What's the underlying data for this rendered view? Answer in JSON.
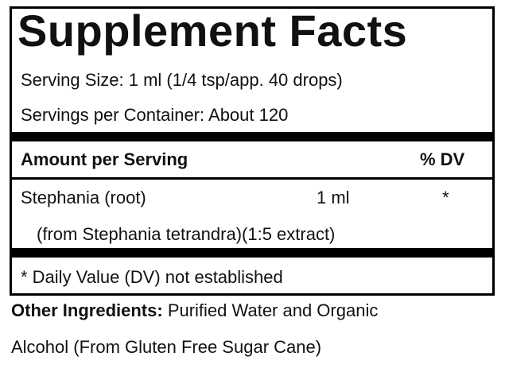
{
  "header": {
    "title": "Supplement Facts"
  },
  "serving_size": "Serving Size: 1 ml (1/4 tsp/app. 40 drops)",
  "servings_per_container": "Servings per Container: About 120",
  "table": {
    "headers": [
      "Amount per Serving",
      "% DV"
    ],
    "rows": [
      [
        "Stephania (root)",
        "1 ml",
        "*"
      ]
    ],
    "row_note": "(from Stephania tetrandra)(1:5 extract)"
  },
  "footnote": "* Daily Value (DV) not established",
  "other_ingredients": {
    "label": "Other Ingredients:",
    "text_line1": "Purified Water and Organic",
    "text_line2": "Alcohol (From Gluten Free Sugar Cane)"
  }
}
